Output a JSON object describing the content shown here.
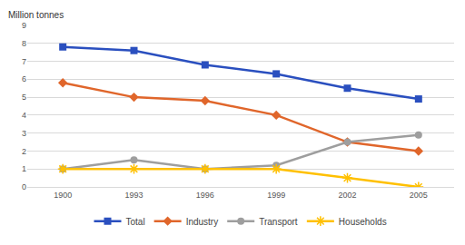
{
  "chart_data": {
    "type": "line",
    "y_label": "Million tonnes",
    "categories": [
      "1900",
      "1993",
      "1996",
      "1999",
      "2002",
      "2005"
    ],
    "series": [
      {
        "name": "Total",
        "color": "#2a4fbf",
        "marker": "square",
        "values": [
          7.8,
          7.6,
          6.8,
          6.3,
          5.5,
          4.9
        ]
      },
      {
        "name": "Industry",
        "color": "#e0662b",
        "marker": "diamond",
        "values": [
          5.8,
          5.0,
          4.8,
          4.0,
          2.5,
          2.0
        ]
      },
      {
        "name": "Transport",
        "color": "#9e9e9e",
        "marker": "circle",
        "values": [
          1.0,
          1.5,
          1.0,
          1.2,
          2.5,
          2.9
        ]
      },
      {
        "name": "Households",
        "color": "#ffc000",
        "marker": "asterisk",
        "values": [
          1.0,
          1.0,
          1.0,
          1.0,
          0.5,
          0.0
        ]
      }
    ],
    "ylim": [
      0,
      9
    ],
    "yticks": [
      0,
      1,
      2,
      3,
      4,
      5,
      6,
      7,
      8,
      9
    ],
    "grid": true,
    "legend": "bottom"
  }
}
